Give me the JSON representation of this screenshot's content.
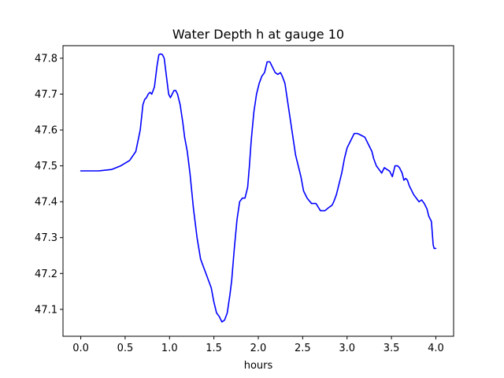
{
  "chart_data": {
    "type": "line",
    "title": "Water Depth h at gauge 10",
    "xlabel": "hours",
    "ylabel": "",
    "xlim": [
      -0.2,
      4.2
    ],
    "ylim": [
      47.025,
      47.835
    ],
    "grid": false,
    "x_ticks": [
      0.0,
      0.5,
      1.0,
      1.5,
      2.0,
      2.5,
      3.0,
      3.5,
      4.0
    ],
    "x_tick_labels": [
      "0.0",
      "0.5",
      "1.0",
      "1.5",
      "2.0",
      "2.5",
      "3.0",
      "3.5",
      "4.0"
    ],
    "y_ticks": [
      47.1,
      47.2,
      47.3,
      47.4,
      47.5,
      47.6,
      47.7,
      47.8
    ],
    "y_tick_labels": [
      "47.1",
      "47.2",
      "47.3",
      "47.4",
      "47.5",
      "47.6",
      "47.7",
      "47.8"
    ],
    "series": [
      {
        "color": "#0000ff",
        "x": [
          0.0,
          0.2,
          0.35,
          0.45,
          0.55,
          0.62,
          0.67,
          0.7,
          0.72,
          0.74,
          0.76,
          0.78,
          0.8,
          0.83,
          0.86,
          0.88,
          0.9,
          0.92,
          0.94,
          0.96,
          0.99,
          1.01,
          1.03,
          1.05,
          1.07,
          1.09,
          1.12,
          1.15,
          1.17,
          1.2,
          1.23,
          1.27,
          1.31,
          1.35,
          1.38,
          1.41,
          1.44,
          1.47,
          1.5,
          1.53,
          1.56,
          1.59,
          1.62,
          1.65,
          1.68,
          1.7,
          1.73,
          1.76,
          1.79,
          1.82,
          1.85,
          1.88,
          1.9,
          1.92,
          1.95,
          1.98,
          2.01,
          2.04,
          2.07,
          2.1,
          2.13,
          2.16,
          2.19,
          2.22,
          2.25,
          2.27,
          2.3,
          2.33,
          2.36,
          2.39,
          2.42,
          2.45,
          2.48,
          2.51,
          2.55,
          2.6,
          2.65,
          2.7,
          2.75,
          2.8,
          2.83,
          2.85,
          2.88,
          2.91,
          2.94,
          2.97,
          3.0,
          3.04,
          3.08,
          3.12,
          3.16,
          3.2,
          3.24,
          3.28,
          3.3,
          3.33,
          3.36,
          3.39,
          3.42,
          3.45,
          3.48,
          3.51,
          3.54,
          3.57,
          3.59,
          3.62,
          3.64,
          3.66,
          3.68,
          3.7,
          3.72,
          3.75,
          3.78,
          3.81,
          3.84,
          3.87,
          3.9,
          3.92,
          3.95,
          3.97,
          3.98,
          4.0
        ],
        "y": [
          47.486,
          47.486,
          47.49,
          47.5,
          47.515,
          47.54,
          47.6,
          47.67,
          47.685,
          47.69,
          47.7,
          47.705,
          47.7,
          47.72,
          47.78,
          47.81,
          47.812,
          47.81,
          47.8,
          47.76,
          47.7,
          47.69,
          47.7,
          47.71,
          47.71,
          47.7,
          47.67,
          47.62,
          47.58,
          47.54,
          47.48,
          47.38,
          47.3,
          47.24,
          47.22,
          47.2,
          47.18,
          47.16,
          47.12,
          47.09,
          47.08,
          47.065,
          47.07,
          47.09,
          47.14,
          47.18,
          47.27,
          47.35,
          47.4,
          47.41,
          47.41,
          47.44,
          47.5,
          47.57,
          47.65,
          47.7,
          47.73,
          47.75,
          47.76,
          47.79,
          47.79,
          47.775,
          47.76,
          47.755,
          47.76,
          47.75,
          47.73,
          47.68,
          47.63,
          47.58,
          47.53,
          47.5,
          47.47,
          47.43,
          47.41,
          47.395,
          47.395,
          47.375,
          47.375,
          47.385,
          47.39,
          47.4,
          47.42,
          47.45,
          47.48,
          47.52,
          47.55,
          47.57,
          47.59,
          47.59,
          47.585,
          47.58,
          47.56,
          47.54,
          47.52,
          47.5,
          47.49,
          47.48,
          47.495,
          47.49,
          47.485,
          47.47,
          47.5,
          47.5,
          47.495,
          47.48,
          47.46,
          47.465,
          47.46,
          47.445,
          47.435,
          47.42,
          47.41,
          47.4,
          47.405,
          47.395,
          47.38,
          47.36,
          47.345,
          47.28,
          47.27,
          47.27
        ]
      }
    ]
  }
}
